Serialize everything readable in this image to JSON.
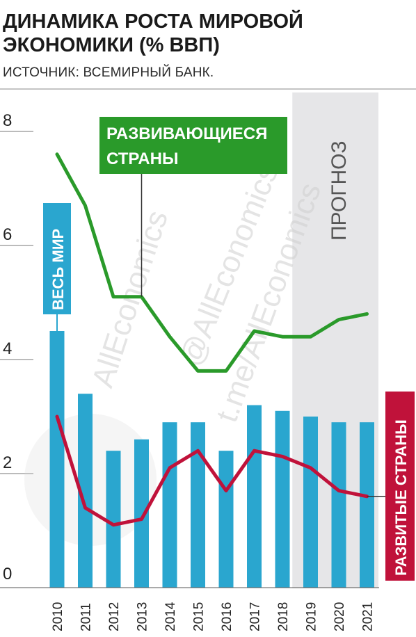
{
  "header": {
    "title": "ДИНАМИКА РОСТА МИРОВОЙ ЭКОНОМИКИ (% ВВП)",
    "source": "ИСТОЧНИК: ВСЕМИРНЫЙ БАНК."
  },
  "watermarks": [
    "AllEconomics",
    "@AllEconomics",
    "t.me/AllEconomics"
  ],
  "chart_data": {
    "type": "bar",
    "categories": [
      "2010",
      "2011",
      "2012",
      "2013",
      "2014",
      "2015",
      "2016",
      "2017",
      "2018",
      "2019",
      "2020",
      "2021"
    ],
    "ylim": [
      0,
      8
    ],
    "yticks": [
      "0",
      "2",
      "4",
      "6",
      "8"
    ],
    "forecast_label": "ПРОГНОЗ",
    "forecast_categories": [
      "2019",
      "2020",
      "2021"
    ],
    "series": [
      {
        "name": "ВЕСЬ МИР",
        "type": "bar",
        "color": "#2aa6cf",
        "values": [
          4.5,
          3.4,
          2.4,
          2.6,
          2.9,
          2.9,
          2.4,
          3.2,
          3.1,
          3.0,
          2.9,
          2.9
        ]
      },
      {
        "name": "РАЗВИВАЮЩИЕСЯ СТРАНЫ",
        "type": "line",
        "color": "#2a9a2a",
        "values": [
          7.6,
          6.7,
          5.1,
          5.1,
          4.4,
          3.8,
          3.8,
          4.5,
          4.4,
          4.4,
          4.7,
          4.8
        ]
      },
      {
        "name": "РАЗВИТЫЕ СТРАНЫ",
        "type": "line",
        "color": "#c0123a",
        "values": [
          3.0,
          1.4,
          1.1,
          1.2,
          2.1,
          2.4,
          1.7,
          2.4,
          2.3,
          2.1,
          1.7,
          1.6
        ]
      }
    ]
  }
}
